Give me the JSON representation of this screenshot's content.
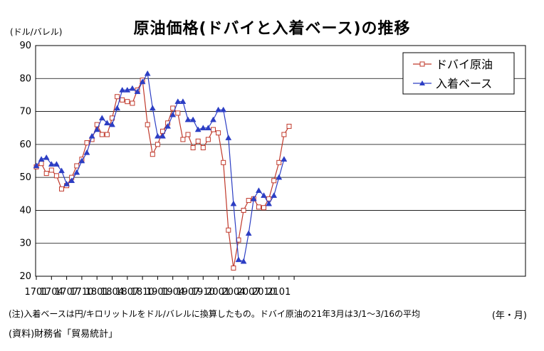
{
  "title": "原油価格(ドバイと入着ベース)の推移",
  "y_unit": "(ドル/バレル)",
  "x_unit": "(年・月)",
  "note": "(注)入着ベースは円/キロリットルをドル/バレルに換算したもの。ドバイ原油の21年3月は3/1～3/16の平均",
  "source": "(資料)財務省「貿易統計」",
  "chart_data": {
    "type": "line",
    "title": "原油価格(ドバイと入着ベース)の推移",
    "xlabel": "(年・月)",
    "ylabel": "(ドル/バレル)",
    "ylim": [
      20,
      90
    ],
    "y_ticks": [
      20,
      30,
      40,
      50,
      60,
      70,
      80,
      90
    ],
    "x_tick_labels": [
      "1701",
      "1704",
      "1707",
      "1710",
      "1801",
      "1804",
      "1807",
      "1810",
      "1901",
      "1904",
      "1907",
      "1910",
      "2001",
      "2004",
      "2007",
      "2010",
      "2101"
    ],
    "grid": "horizontal",
    "legend_position": "top-right",
    "series": [
      {
        "name": "ドバイ原油",
        "color": "#c0392b",
        "marker": "square-open",
        "values": [
          53.2,
          54.2,
          51.2,
          52.2,
          50.5,
          46.5,
          47.5,
          50.0,
          53.5,
          55.5,
          60.5,
          61.5,
          66.0,
          63.0,
          63.0,
          68.0,
          74.5,
          73.5,
          73.0,
          72.5,
          76.5,
          79.5,
          66.0,
          57.0,
          60.0,
          64.0,
          66.5,
          71.0,
          69.5,
          61.5,
          63.0,
          59.0,
          61.0,
          59.0,
          61.5,
          64.5,
          63.5,
          54.5,
          34.0,
          22.5,
          31.0,
          40.0,
          43.0,
          43.5,
          41.0,
          40.8,
          43.5,
          49.0,
          54.5,
          63.0,
          65.5
        ]
      },
      {
        "name": "入着ベース",
        "color": "#2c3ec4",
        "marker": "triangle-filled",
        "values": [
          53.5,
          55.5,
          56.0,
          54.0,
          54.0,
          52.0,
          48.0,
          49.0,
          51.5,
          55.0,
          57.5,
          62.5,
          64.5,
          68.0,
          66.5,
          66.0,
          71.0,
          76.5,
          76.5,
          77.0,
          76.0,
          79.0,
          81.5,
          71.0,
          62.5,
          62.5,
          65.5,
          69.0,
          73.0,
          73.0,
          67.5,
          67.5,
          64.5,
          65.0,
          65.0,
          67.5,
          70.5,
          70.5,
          62.0,
          42.0,
          25.0,
          24.5,
          33.0,
          43.5,
          46.0,
          44.5,
          42.0,
          44.5,
          50.0,
          55.5,
          null
        ]
      }
    ]
  }
}
